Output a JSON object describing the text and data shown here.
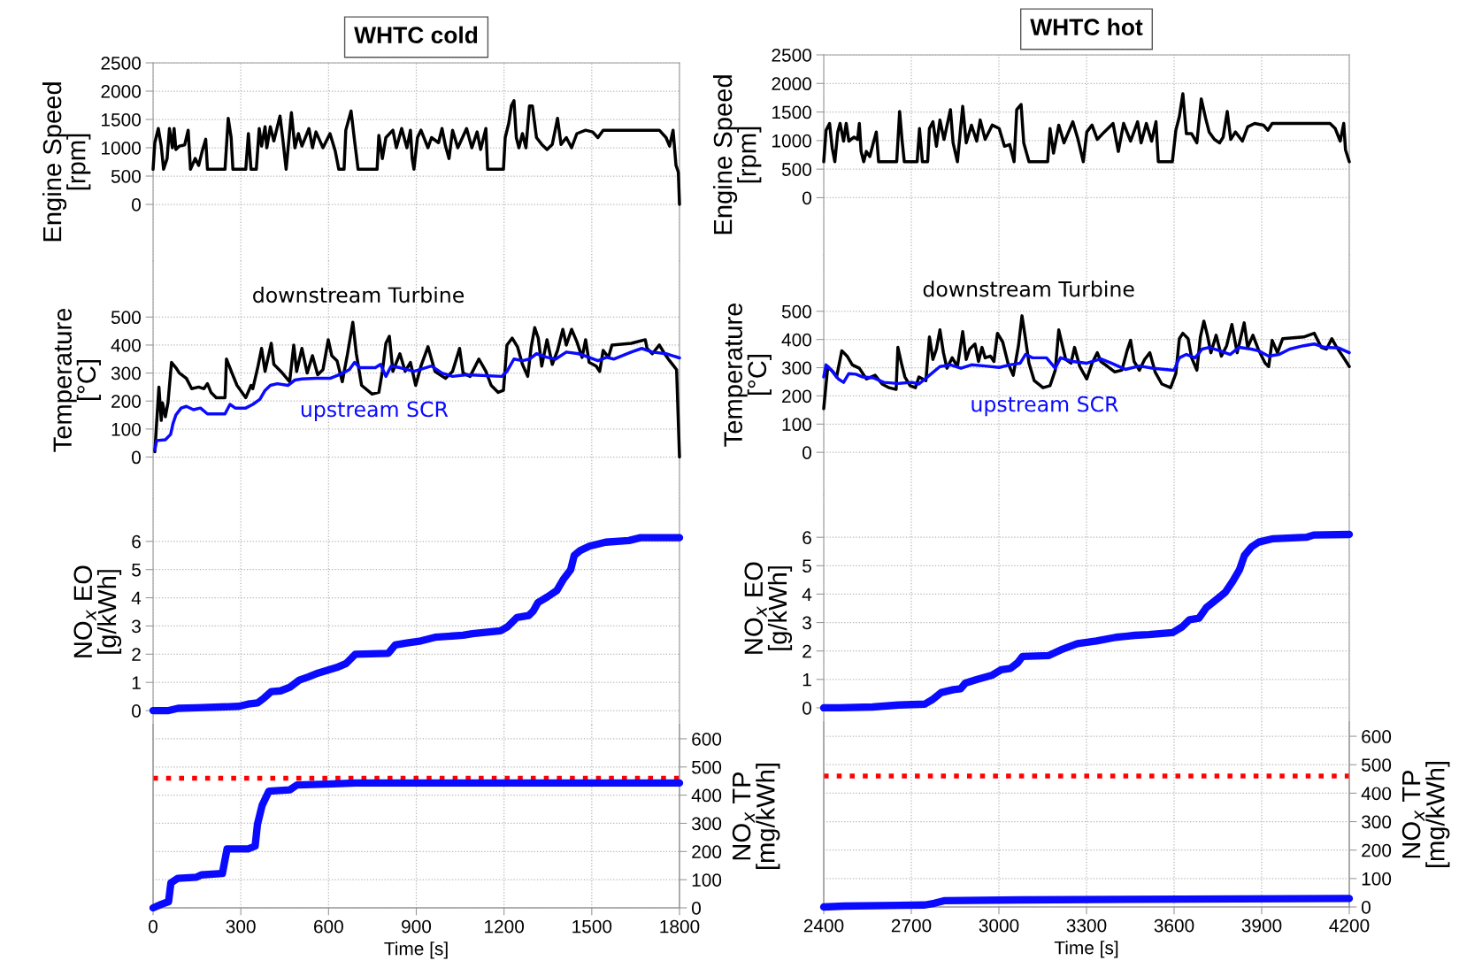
{
  "chart_data": [
    {
      "type": "line",
      "title": "WHTC cold",
      "ylabel": "Engine Speed\n[rpm]",
      "xlim": [
        0,
        1800
      ],
      "xticks": [
        0,
        300,
        600,
        900,
        1200,
        1500,
        1800
      ],
      "ylim": [
        -1000,
        2500
      ],
      "yticks": [
        0,
        500,
        1000,
        1500,
        2000,
        2500
      ],
      "grid": true,
      "tick_labels": "y",
      "series": [
        {
          "color": "#000000",
          "x": [
            0,
            6,
            18,
            28,
            36,
            48,
            56,
            66,
            72,
            78,
            90,
            108,
            120,
            128,
            144,
            156,
            168,
            180,
            186,
            246,
            257,
            267,
            273,
            317,
            326,
            335,
            353,
            363,
            371,
            383,
            389,
            401,
            413,
            434,
            443,
            455,
            473,
            485,
            497,
            509,
            533,
            545,
            557,
            581,
            605,
            623,
            635,
            653,
            659,
            677,
            689,
            701,
            766,
            772,
            784,
            796,
            820,
            832,
            850,
            868,
            880,
            886,
            892,
            904,
            916,
            940,
            952,
            976,
            988,
            1000,
            1012,
            1024,
            1042,
            1072,
            1090,
            1108,
            1120,
            1138,
            1144,
            1198,
            1204,
            1216,
            1225,
            1234,
            1242,
            1251,
            1263,
            1275,
            1287,
            1297,
            1311,
            1329,
            1347,
            1365,
            1383,
            1395,
            1413,
            1431,
            1449,
            1479,
            1503,
            1521,
            1539,
            1731,
            1754,
            1766,
            1778,
            1788,
            1796,
            1800
          ],
          "values": [
            620,
            1090,
            1340,
            1030,
            620,
            810,
            1340,
            1000,
            1340,
            970,
            1030,
            1050,
            1310,
            620,
            810,
            690,
            940,
            1150,
            620,
            620,
            1520,
            1180,
            620,
            620,
            1250,
            620,
            620,
            1340,
            1030,
            1370,
            1000,
            1370,
            1120,
            1560,
            1180,
            620,
            1620,
            1000,
            1250,
            1030,
            1340,
            1000,
            1280,
            1000,
            1250,
            940,
            620,
            620,
            1310,
            1650,
            1120,
            620,
            620,
            1220,
            810,
            1180,
            1310,
            1000,
            1340,
            1000,
            1310,
            810,
            620,
            1180,
            1310,
            1000,
            1180,
            1090,
            1340,
            1030,
            810,
            1310,
            1000,
            1340,
            1000,
            1280,
            970,
            1340,
            620,
            620,
            1180,
            1430,
            1740,
            1830,
            1180,
            1000,
            1250,
            1000,
            1740,
            1740,
            1180,
            1060,
            970,
            1060,
            1520,
            1060,
            1180,
            1000,
            1250,
            1310,
            1280,
            1180,
            1310,
            1310,
            1180,
            1030,
            1310,
            690,
            570,
            0
          ]
        }
      ]
    },
    {
      "type": "line",
      "ylabel": "Temperature\n[°C]",
      "xlim": [
        0,
        1800
      ],
      "xticks": [
        0,
        300,
        600,
        900,
        1200,
        1500,
        1800
      ],
      "ylim": [
        -150,
        700
      ],
      "yticks": [
        0,
        100,
        200,
        300,
        400,
        500
      ],
      "grid": true,
      "tick_labels": "y",
      "series": [
        {
          "name": "downstream Turbine",
          "color": "#000000",
          "x": [
            6,
            12,
            20,
            28,
            32,
            42,
            51,
            63,
            78,
            90,
            114,
            132,
            156,
            174,
            186,
            198,
            216,
            246,
            251,
            272,
            287,
            317,
            335,
            341,
            359,
            371,
            383,
            404,
            413,
            437,
            467,
            481,
            491,
            509,
            527,
            545,
            563,
            581,
            599,
            611,
            629,
            647,
            665,
            683,
            695,
            713,
            749,
            772,
            784,
            796,
            808,
            820,
            844,
            862,
            880,
            898,
            916,
            940,
            964,
            1000,
            1024,
            1048,
            1060,
            1084,
            1114,
            1138,
            1156,
            1180,
            1198,
            1210,
            1228,
            1246,
            1263,
            1281,
            1293,
            1305,
            1317,
            1329,
            1347,
            1365,
            1383,
            1401,
            1413,
            1431,
            1449,
            1467,
            1479,
            1491,
            1515,
            1527,
            1539,
            1557,
            1569,
            1635,
            1683,
            1689,
            1707,
            1731,
            1749,
            1766,
            1790,
            1800
          ],
          "values": [
            19,
            119,
            250,
            131,
            194,
            144,
            194,
            338,
            319,
            300,
            281,
            244,
            250,
            244,
            262,
            231,
            212,
            212,
            350,
            294,
            256,
            212,
            256,
            244,
            325,
            388,
            306,
            406,
            331,
            306,
            269,
            400,
            306,
            388,
            300,
            362,
            294,
            312,
            419,
            362,
            344,
            269,
            369,
            481,
            369,
            256,
            225,
            231,
            306,
            406,
            431,
            306,
            369,
            306,
            338,
            256,
            325,
            394,
            306,
            281,
            306,
            388,
            300,
            288,
            350,
            306,
            256,
            231,
            238,
            400,
            425,
            394,
            331,
            288,
            394,
            462,
            425,
            325,
            419,
            331,
            381,
            456,
            400,
            456,
            412,
            356,
            419,
            338,
            325,
            306,
            381,
            356,
            400,
            406,
            419,
            388,
            369,
            400,
            369,
            344,
            312,
            0
          ]
        },
        {
          "name": "upstream SCR",
          "color": "#0a0aff",
          "x": [
            6,
            12,
            42,
            60,
            68,
            78,
            96,
            114,
            138,
            162,
            186,
            246,
            263,
            281,
            317,
            341,
            365,
            383,
            401,
            425,
            461,
            485,
            509,
            557,
            605,
            641,
            671,
            689,
            707,
            760,
            778,
            796,
            814,
            844,
            892,
            952,
            988,
            1024,
            1072,
            1192,
            1210,
            1234,
            1263,
            1287,
            1311,
            1347,
            1377,
            1413,
            1455,
            1491,
            1521,
            1551,
            1575,
            1635,
            1671,
            1707,
            1754,
            1800
          ],
          "values": [
            25,
            59,
            62,
            81,
            119,
            150,
            175,
            181,
            169,
            175,
            154,
            154,
            188,
            175,
            175,
            188,
            206,
            238,
            256,
            262,
            256,
            275,
            279,
            281,
            281,
            296,
            312,
            338,
            319,
            319,
            331,
            288,
            325,
            319,
            306,
            325,
            300,
            288,
            294,
            288,
            306,
            350,
            344,
            350,
            369,
            356,
            350,
            375,
            369,
            356,
            344,
            356,
            350,
            375,
            388,
            375,
            369,
            354
          ]
        }
      ]
    },
    {
      "type": "line",
      "ylabel": "NO$_{x}$ EO\n[g/kWh]",
      "xlim": [
        0,
        1800
      ],
      "xticks": [
        0,
        300,
        600,
        900,
        1200,
        1500,
        1800
      ],
      "ylim": [
        -0.5,
        7.5
      ],
      "yticks": [
        0,
        1,
        2,
        3,
        4,
        5,
        6
      ],
      "grid": true,
      "tick_labels": "y",
      "series": [
        {
          "color": "#0a0aff",
          "x": [
            0,
            53,
            85,
            149,
            293,
            325,
            357,
            380,
            404,
            436,
            468,
            500,
            532,
            564,
            596,
            628,
            660,
            692,
            804,
            828,
            868,
            916,
            964,
            1060,
            1092,
            1188,
            1212,
            1244,
            1284,
            1300,
            1316,
            1348,
            1380,
            1404,
            1428,
            1440,
            1460,
            1492,
            1547,
            1627,
            1667,
            1800
          ],
          "values": [
            0,
            0,
            0.08,
            0.1,
            0.15,
            0.23,
            0.27,
            0.45,
            0.67,
            0.7,
            0.83,
            1.08,
            1.2,
            1.33,
            1.43,
            1.53,
            1.67,
            2.0,
            2.03,
            2.33,
            2.4,
            2.47,
            2.6,
            2.67,
            2.73,
            2.83,
            2.97,
            3.3,
            3.37,
            3.53,
            3.83,
            4.03,
            4.25,
            4.67,
            5.0,
            5.5,
            5.67,
            5.83,
            5.97,
            6.03,
            6.13,
            6.13
          ]
        }
      ]
    },
    {
      "type": "line",
      "xlabel": "Time [s]",
      "y2label": "NO$_{x}$ TP\n[mg/kWh]",
      "xlim": [
        0,
        1800
      ],
      "xticks": [
        0,
        300,
        600,
        900,
        1200,
        1500,
        1800
      ],
      "y2lim": [
        0,
        650
      ],
      "y2ticks": [
        0,
        100,
        200,
        300,
        400,
        500,
        600
      ],
      "grid": true,
      "ref_lines": [
        {
          "axis": "y2",
          "value": 460,
          "color": "#ff0000",
          "line_style": "dotted"
        }
      ],
      "series": [
        {
          "axis": "y2",
          "color": "#0a0aff",
          "x": [
            0,
            29,
            53,
            61,
            85,
            149,
            165,
            237,
            253,
            325,
            349,
            357,
            373,
            396,
            468,
            492,
            596,
            692,
            1800
          ],
          "values": [
            0,
            13,
            22,
            89,
            105,
            109,
            117,
            122,
            209,
            209,
            219,
            297,
            364,
            414,
            419,
            436,
            439,
            443,
            443
          ]
        }
      ]
    },
    {
      "type": "line",
      "title": "WHTC hot",
      "ylabel": "Engine Speed\n[rpm]",
      "xlim": [
        2400,
        4200
      ],
      "xticks": [
        2400,
        2700,
        3000,
        3300,
        3600,
        3900,
        4200
      ],
      "ylim": [
        -1000,
        2500
      ],
      "yticks": [
        0,
        500,
        1000,
        1500,
        2000,
        2500
      ],
      "grid": true,
      "tick_labels": "y",
      "series": [
        {
          "color": "#000000",
          "x": [
            2400,
            2408,
            2420,
            2429,
            2438,
            2448,
            2456,
            2468,
            2477,
            2486,
            2504,
            2516,
            2522,
            2528,
            2537,
            2546,
            2558,
            2570,
            2580,
            2588,
            2650,
            2660,
            2668,
            2676,
            2720,
            2728,
            2738,
            2756,
            2762,
            2774,
            2786,
            2798,
            2812,
            2834,
            2843,
            2858,
            2876,
            2888,
            2906,
            2924,
            2936,
            2953,
            2977,
            3001,
            3019,
            3037,
            3052,
            3061,
            3076,
            3085,
            3103,
            3167,
            3175,
            3187,
            3205,
            3223,
            3253,
            3271,
            3289,
            3301,
            3319,
            3337,
            3361,
            3391,
            3409,
            3427,
            3451,
            3475,
            3487,
            3505,
            3523,
            3538,
            3546,
            3594,
            3606,
            3618,
            3630,
            3642,
            3660,
            3678,
            3693,
            3708,
            3720,
            3738,
            3756,
            3768,
            3782,
            3794,
            3810,
            3834,
            3852,
            3876,
            3906,
            3921,
            3936,
            4134,
            4152,
            4169,
            4181,
            4187,
            4200
          ],
          "values": [
            630,
            1180,
            1300,
            870,
            630,
            1150,
            1300,
            990,
            1300,
            990,
            1060,
            1020,
            1300,
            810,
            630,
            810,
            720,
            960,
            1150,
            630,
            630,
            1510,
            1020,
            630,
            630,
            1210,
            630,
            630,
            1210,
            1330,
            900,
            1360,
            1020,
            1540,
            960,
            630,
            1600,
            960,
            1270,
            990,
            1360,
            1020,
            1270,
            1210,
            900,
            930,
            630,
            1540,
            1630,
            960,
            630,
            630,
            1210,
            780,
            1270,
            960,
            1330,
            1020,
            630,
            1150,
            1270,
            1020,
            1150,
            1300,
            810,
            1300,
            990,
            1330,
            960,
            1300,
            990,
            1330,
            630,
            630,
            1180,
            1420,
            1820,
            1120,
            1120,
            960,
            1730,
            1390,
            1150,
            1020,
            960,
            1060,
            1510,
            1020,
            1150,
            990,
            1240,
            1300,
            1270,
            1180,
            1300,
            1300,
            1210,
            990,
            1300,
            840,
            630
          ]
        }
      ]
    },
    {
      "type": "line",
      "ylabel": "Temperature\n[°C]",
      "xlim": [
        2400,
        4200
      ],
      "xticks": [
        2400,
        2700,
        3000,
        3300,
        3600,
        3900,
        4200
      ],
      "ylim": [
        -150,
        700
      ],
      "yticks": [
        0,
        100,
        200,
        300,
        400,
        500
      ],
      "grid": true,
      "tick_labels": "y",
      "series": [
        {
          "name": "downstream Turbine",
          "color": "#000000",
          "x": [
            2400,
            2408,
            2414,
            2432,
            2444,
            2462,
            2480,
            2498,
            2522,
            2546,
            2576,
            2600,
            2624,
            2648,
            2654,
            2666,
            2678,
            2696,
            2714,
            2726,
            2750,
            2762,
            2774,
            2786,
            2798,
            2810,
            2822,
            2840,
            2858,
            2876,
            2888,
            2900,
            2918,
            2930,
            2942,
            2953,
            2971,
            2983,
            2995,
            3013,
            3031,
            3049,
            3067,
            3079,
            3091,
            3103,
            3121,
            3151,
            3175,
            3193,
            3205,
            3219,
            3229,
            3247,
            3259,
            3277,
            3301,
            3319,
            3337,
            3349,
            3373,
            3397,
            3421,
            3439,
            3451,
            3463,
            3481,
            3499,
            3517,
            3535,
            3558,
            3588,
            3606,
            3618,
            3630,
            3648,
            3660,
            3678,
            3690,
            3702,
            3714,
            3726,
            3744,
            3762,
            3780,
            3798,
            3816,
            3840,
            3852,
            3870,
            3888,
            3912,
            3924,
            3936,
            3954,
            3972,
            4044,
            4080,
            4104,
            4122,
            4140,
            4157,
            4181,
            4200
          ],
          "values": [
            155,
            242,
            304,
            285,
            267,
            360,
            341,
            310,
            298,
            260,
            273,
            242,
            229,
            223,
            372,
            316,
            267,
            236,
            229,
            267,
            254,
            409,
            329,
            366,
            434,
            353,
            298,
            335,
            304,
            428,
            329,
            366,
            384,
            322,
            372,
            335,
            341,
            322,
            422,
            391,
            316,
            273,
            378,
            484,
            403,
            316,
            254,
            229,
            236,
            291,
            434,
            372,
            329,
            316,
            372,
            304,
            260,
            316,
            353,
            322,
            304,
            285,
            291,
            360,
            397,
            322,
            291,
            329,
            353,
            285,
            242,
            229,
            279,
            403,
            422,
            403,
            335,
            291,
            409,
            465,
            415,
            353,
            415,
            341,
            378,
            453,
            353,
            459,
            372,
            415,
            366,
            316,
            304,
            397,
            353,
            403,
            409,
            422,
            372,
            366,
            403,
            372,
            335,
            304
          ]
        },
        {
          "name": "upstream SCR",
          "color": "#0a0aff",
          "x": [
            2400,
            2408,
            2426,
            2450,
            2468,
            2486,
            2510,
            2534,
            2570,
            2606,
            2654,
            2702,
            2726,
            2762,
            2798,
            2834,
            2870,
            2906,
            2953,
            3001,
            3037,
            3073,
            3091,
            3115,
            3163,
            3193,
            3211,
            3253,
            3301,
            3349,
            3385,
            3433,
            3481,
            3529,
            3600,
            3618,
            3642,
            3672,
            3696,
            3720,
            3756,
            3792,
            3822,
            3864,
            3888,
            3924,
            3960,
            3996,
            4044,
            4080,
            4116,
            4163,
            4200
          ],
          "values": [
            267,
            310,
            291,
            260,
            248,
            279,
            277,
            267,
            264,
            248,
            244,
            248,
            242,
            273,
            304,
            310,
            298,
            310,
            306,
            301,
            310,
            316,
            347,
            335,
            335,
            298,
            335,
            322,
            316,
            331,
            316,
            294,
            306,
            298,
            291,
            335,
            347,
            335,
            366,
            372,
            360,
            347,
            372,
            366,
            360,
            341,
            347,
            366,
            378,
            384,
            372,
            370,
            353
          ]
        }
      ]
    },
    {
      "type": "line",
      "ylabel": "NO$_{x}$ EO\n[g/kWh]",
      "xlim": [
        2400,
        4200
      ],
      "xticks": [
        2400,
        2700,
        3000,
        3300,
        3600,
        3900,
        4200
      ],
      "ylim": [
        -0.5,
        7.5
      ],
      "yticks": [
        0,
        1,
        2,
        3,
        4,
        5,
        6
      ],
      "grid": true,
      "tick_labels": "y",
      "series": [
        {
          "color": "#0a0aff",
          "x": [
            2400,
            2452,
            2567,
            2656,
            2746,
            2771,
            2803,
            2844,
            2869,
            2885,
            2926,
            2975,
            3008,
            3040,
            3065,
            3081,
            3171,
            3212,
            3269,
            3334,
            3400,
            3465,
            3514,
            3596,
            3628,
            3653,
            3685,
            3710,
            3734,
            3775,
            3800,
            3824,
            3841,
            3865,
            3890,
            3939,
            4053,
            4078,
            4200
          ],
          "values": [
            0,
            0,
            0.03,
            0.1,
            0.13,
            0.28,
            0.54,
            0.64,
            0.67,
            0.87,
            1.0,
            1.14,
            1.34,
            1.39,
            1.59,
            1.81,
            1.84,
            2.04,
            2.26,
            2.35,
            2.48,
            2.55,
            2.58,
            2.65,
            2.85,
            3.1,
            3.15,
            3.52,
            3.72,
            4.06,
            4.44,
            4.86,
            5.36,
            5.66,
            5.83,
            5.95,
            6.0,
            6.08,
            6.1
          ]
        }
      ]
    },
    {
      "type": "line",
      "xlabel": "Time [s]",
      "y2label": "NO$_{x}$ TP\n[mg/kWh]",
      "xlim": [
        2400,
        4200
      ],
      "xticks": [
        2400,
        2700,
        3000,
        3300,
        3600,
        3900,
        4200
      ],
      "y2lim": [
        0,
        650
      ],
      "y2ticks": [
        0,
        100,
        200,
        300,
        400,
        500,
        600
      ],
      "grid": true,
      "ref_lines": [
        {
          "axis": "y2",
          "value": 460,
          "color": "#ff0000",
          "line_style": "dotted"
        }
      ],
      "series": [
        {
          "axis": "y2",
          "color": "#0a0aff",
          "x": [
            2400,
            2469,
            2746,
            2779,
            2812,
            3073,
            4200
          ],
          "values": [
            0,
            3,
            7,
            13,
            22,
            25,
            30
          ]
        }
      ]
    }
  ]
}
